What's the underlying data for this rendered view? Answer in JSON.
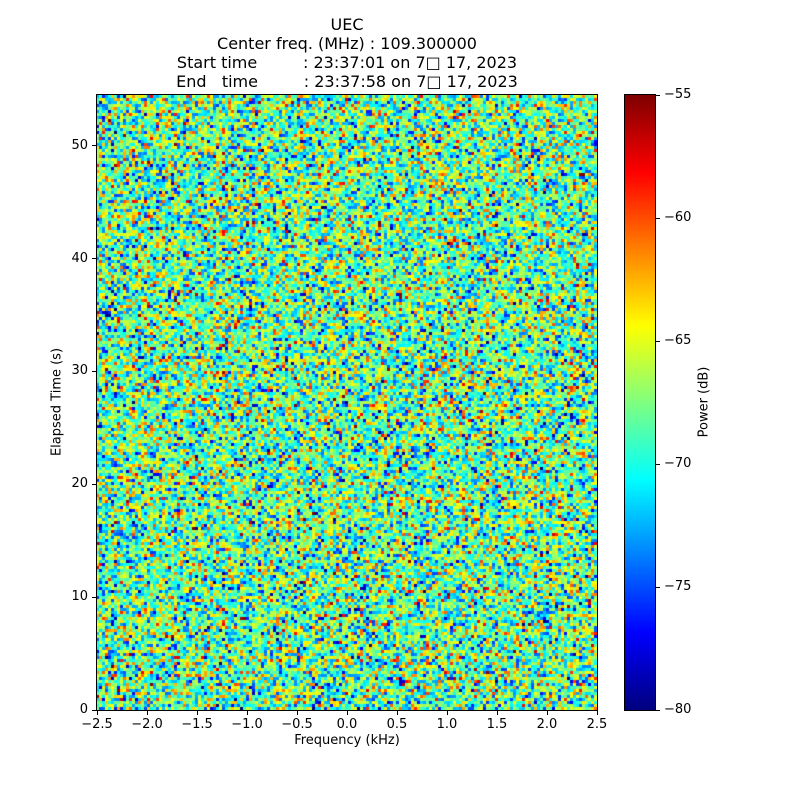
{
  "chart_data": {
    "type": "heatmap",
    "title": "UEC",
    "header_lines": [
      "Center freq. (MHz) : 109.300000",
      "Start time         : 23:37:01 on 7□ 17, 2023",
      "End   time         : 23:37:58 on 7□ 17, 2023"
    ],
    "xlabel": "Frequency (kHz)",
    "ylabel": "Elapsed Time (s)",
    "xlim": [
      -2.5,
      2.5
    ],
    "ylim": [
      0,
      54.5
    ],
    "x_ticks": [
      {
        "value": -2.5,
        "label": "−2.5"
      },
      {
        "value": -2.0,
        "label": "−2.0"
      },
      {
        "value": -1.5,
        "label": "−1.5"
      },
      {
        "value": -1.0,
        "label": "−1.0"
      },
      {
        "value": -0.5,
        "label": "−0.5"
      },
      {
        "value": 0.0,
        "label": "0.0"
      },
      {
        "value": 0.5,
        "label": "0.5"
      },
      {
        "value": 1.0,
        "label": "1.0"
      },
      {
        "value": 1.5,
        "label": "1.5"
      },
      {
        "value": 2.0,
        "label": "2.0"
      },
      {
        "value": 2.5,
        "label": "2.5"
      }
    ],
    "y_ticks": [
      {
        "value": 0,
        "label": "0"
      },
      {
        "value": 10,
        "label": "10"
      },
      {
        "value": 20,
        "label": "20"
      },
      {
        "value": 30,
        "label": "30"
      },
      {
        "value": 40,
        "label": "40"
      },
      {
        "value": 50,
        "label": "50"
      }
    ],
    "colorbar": {
      "label": "Power (dB)",
      "colormap": "jet",
      "clim": [
        -80,
        -55
      ],
      "ticks": [
        {
          "value": -55,
          "label": "−55"
        },
        {
          "value": -60,
          "label": "−60"
        },
        {
          "value": -65,
          "label": "−65"
        },
        {
          "value": -70,
          "label": "−70"
        },
        {
          "value": -75,
          "label": "−75"
        },
        {
          "value": -80,
          "label": "−80"
        }
      ]
    },
    "noise": {
      "description": "broadband gaussian noise field, no visible carrier",
      "mean_db": -68.2,
      "std_db": 4.3,
      "seed": 42,
      "cols": 167,
      "rows": 205
    },
    "grid": false,
    "legend": null
  }
}
